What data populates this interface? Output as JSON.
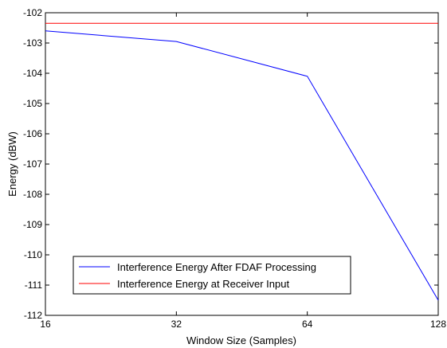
{
  "chart_data": {
    "type": "line",
    "xlabel": "Window Size (Samples)",
    "ylabel": "Energy (dBW)",
    "xscale": "log2",
    "xlim": [
      16,
      128
    ],
    "ylim": [
      -112,
      -102
    ],
    "xticks": [
      16,
      32,
      64,
      128
    ],
    "xtick_labels": [
      "16",
      "32",
      "64",
      "128"
    ],
    "yticks": [
      -112,
      -111,
      -110,
      -109,
      -108,
      -107,
      -106,
      -105,
      -104,
      -103,
      -102
    ],
    "ytick_labels": [
      "-112",
      "-111",
      "-110",
      "-109",
      "-108",
      "-107",
      "-106",
      "-105",
      "-104",
      "-103",
      "-102"
    ],
    "grid": false,
    "legend_position": "bottom-left",
    "series": [
      {
        "name": "Interference Energy After FDAF Processing",
        "color": "#0000ff",
        "x": [
          16,
          32,
          64,
          128
        ],
        "y": [
          -102.6,
          -102.95,
          -104.1,
          -111.5
        ]
      },
      {
        "name": "Interference Energy at Receiver Input",
        "color": "#ff0000",
        "x": [
          16,
          128
        ],
        "y": [
          -102.35,
          -102.35
        ]
      }
    ]
  }
}
